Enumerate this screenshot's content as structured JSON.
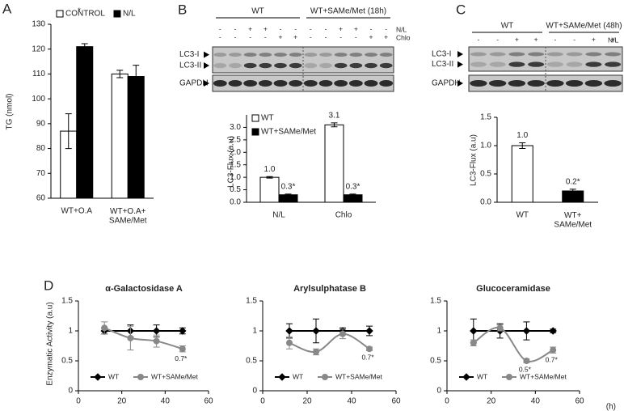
{
  "panel_labels": [
    "A",
    "B",
    "C",
    "D"
  ],
  "blots": [
    {
      "groups": [
        "WT",
        "WT+SAMe/Met (18h)"
      ],
      "treatments": [
        {
          "name": "N/L",
          "signs": [
            "-",
            "-",
            "+",
            "+",
            "-",
            "-",
            "-",
            "-",
            "+",
            "+",
            "-",
            "-"
          ]
        },
        {
          "name": "Chlo",
          "signs": [
            "-",
            "-",
            "-",
            "-",
            "+",
            "+",
            "-",
            "-",
            "-",
            "-",
            "+",
            "+"
          ]
        }
      ],
      "bands": [
        "LC3-I",
        "LC3-II",
        "GAPDH"
      ]
    },
    {
      "groups": [
        "WT",
        "WT+SAMe/Met (48h)"
      ],
      "treatments": [
        {
          "name": "N/L",
          "signs": [
            "-",
            "-",
            "+",
            "+",
            "-",
            "-",
            "+",
            "+"
          ]
        }
      ],
      "bands": [
        "LC3-I",
        "LC3-II",
        "GAPDH"
      ]
    }
  ],
  "chart_data": [
    {
      "type": "bar",
      "ylabel": "TG (nmol)",
      "categories": [
        "WT+O.A",
        "WT+O.A+\nSAMe/Met"
      ],
      "series": [
        {
          "name": "CONTROL",
          "color": "#ffffff",
          "values": [
            87,
            110
          ],
          "errors": [
            7,
            1.5
          ]
        },
        {
          "name": "N/L",
          "color": "#000000",
          "values": [
            121,
            109
          ],
          "errors": [
            1.2,
            4.5
          ]
        }
      ],
      "annotations": [
        "*"
      ],
      "ylim": [
        60,
        130
      ],
      "yticks": [
        60,
        70,
        80,
        90,
        100,
        110,
        120,
        130
      ]
    },
    {
      "type": "bar",
      "ylabel": "LC3-Flux (a.u)",
      "categories": [
        "N/L",
        "Chlo"
      ],
      "series": [
        {
          "name": "WT",
          "color": "#ffffff",
          "values": [
            1.0,
            3.1
          ],
          "value_labels": [
            "1.0",
            "3.1"
          ],
          "errors": [
            0.03,
            0.08
          ]
        },
        {
          "name": "WT+SAMe/Met",
          "color": "#000000",
          "values": [
            0.3,
            0.3
          ],
          "value_labels": [
            "0.3*",
            "0.3*"
          ],
          "errors": [
            0.03,
            0.03
          ]
        }
      ],
      "ylim": [
        0,
        3.5
      ],
      "yticks": [
        {
          "value": 0,
          "label": "0.0"
        },
        0.5,
        {
          "value": 1,
          "label": "1.0"
        },
        1.5,
        {
          "value": 2,
          "label": "2.0"
        },
        2.5,
        {
          "value": 3,
          "label": "3.0"
        }
      ]
    },
    {
      "type": "bar",
      "ylabel": "LC3-Flux (a.u)",
      "categories": [
        "WT",
        "WT+\nSAMe/Met"
      ],
      "values": [
        1.0,
        0.2
      ],
      "value_labels": [
        "1.0",
        "0.2*"
      ],
      "errors": [
        0.05,
        0.03
      ],
      "colors": [
        "#ffffff",
        "#000000"
      ],
      "ylim": [
        0,
        1.5
      ],
      "yticks": [
        {
          "value": 0,
          "label": "0.0"
        },
        0.5,
        {
          "value": 1,
          "label": "1.0"
        },
        1.5
      ]
    },
    {
      "type": "line",
      "title": "α-Galactosidase A",
      "ylabel": "Enzymatic Activity (a.u)",
      "x": [
        12,
        24,
        36,
        48
      ],
      "series": [
        {
          "name": "WT",
          "color": "#000000",
          "marker": "diamond",
          "values": [
            1.0,
            1.0,
            1.0,
            1.0
          ],
          "errors": [
            0.05,
            0.1,
            0.1,
            0.05
          ]
        },
        {
          "name": "WT+SAMe/Met",
          "color": "#888888",
          "marker": "circle",
          "values": [
            1.05,
            0.88,
            0.83,
            0.7
          ],
          "errors": [
            0.1,
            0.2,
            0.1,
            0.05
          ],
          "value_labels": [
            null,
            null,
            null,
            "0.7*"
          ]
        }
      ],
      "xlim": [
        0,
        60
      ],
      "xticks": [
        0,
        20,
        40,
        60
      ],
      "ylim": [
        0,
        1.5
      ],
      "yticks": [
        0,
        0.5,
        1,
        1.5
      ]
    },
    {
      "type": "line",
      "title": "Arylsulphatase B",
      "x": [
        12,
        24,
        36,
        48
      ],
      "series": [
        {
          "name": "WT",
          "color": "#000000",
          "marker": "diamond",
          "values": [
            1.0,
            1.0,
            1.0,
            1.0
          ],
          "errors": [
            0.12,
            0.2,
            0.05,
            0.08
          ]
        },
        {
          "name": "WT+SAMe/Met",
          "color": "#888888",
          "marker": "circle",
          "values": [
            0.8,
            0.65,
            0.95,
            0.7
          ],
          "errors": [
            0.1,
            0.05,
            0.08,
            0.03
          ],
          "value_labels": [
            null,
            null,
            null,
            "0.7*"
          ]
        }
      ],
      "xlim": [
        0,
        60
      ],
      "xticks": [
        0,
        20,
        40,
        60
      ],
      "ylim": [
        0,
        1.5
      ],
      "yticks": [
        0,
        0.5,
        1,
        1.5
      ]
    },
    {
      "type": "line",
      "title": "Glucoceramidase",
      "xlabel": "(h)",
      "x": [
        12,
        24,
        36,
        48
      ],
      "series": [
        {
          "name": "WT",
          "color": "#000000",
          "marker": "diamond",
          "values": [
            1.0,
            1.0,
            1.0,
            1.0
          ],
          "errors": [
            0.2,
            0.12,
            0.15,
            0.03
          ]
        },
        {
          "name": "WT+SAMe/Met",
          "color": "#888888",
          "marker": "circle",
          "values": [
            0.8,
            1.05,
            0.5,
            0.68
          ],
          "errors": [
            0.05,
            0.05,
            0.03,
            0.05
          ],
          "value_labels": [
            null,
            null,
            "0.5*",
            "0.7*"
          ]
        }
      ],
      "xlim": [
        0,
        60
      ],
      "xticks": [
        0,
        20,
        40,
        60
      ],
      "ylim": [
        0,
        1.5
      ],
      "yticks": [
        0,
        0.5,
        1,
        1.5
      ]
    }
  ]
}
